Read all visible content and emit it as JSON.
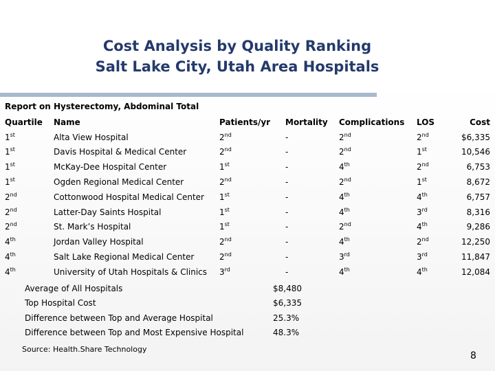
{
  "title_line1": "Cost Analysis by Quality Ranking",
  "title_line2": "Salt Lake City, Utah Area Hospitals",
  "report_label": "Report on Hysterectomy, Abdominal Total",
  "headers": {
    "quartile": "Quartile",
    "name": "Name",
    "patients": "Patients/yr",
    "mortality": "Mortality",
    "complications": "Complications",
    "los": "LOS",
    "cost": "Cost"
  },
  "rows": [
    {
      "quartile": [
        "1",
        "st"
      ],
      "name": "Alta View Hospital",
      "patients": [
        "2",
        "nd"
      ],
      "mortality": "-",
      "complications": [
        "2",
        "nd"
      ],
      "los": [
        "2",
        "nd"
      ],
      "cost": "$6,335"
    },
    {
      "quartile": [
        "1",
        "st"
      ],
      "name": "Davis Hospital & Medical Center",
      "patients": [
        "2",
        "nd"
      ],
      "mortality": "-",
      "complications": [
        "2",
        "nd"
      ],
      "los": [
        "1",
        "st"
      ],
      "cost": "10,546"
    },
    {
      "quartile": [
        "1",
        "st"
      ],
      "name": "McKay-Dee Hospital Center",
      "patients": [
        "1",
        "st"
      ],
      "mortality": "-",
      "complications": [
        "4",
        "th"
      ],
      "los": [
        "2",
        "nd"
      ],
      "cost": "6,753"
    },
    {
      "quartile": [
        "1",
        "st"
      ],
      "name": "Ogden Regional Medical Center",
      "patients": [
        "2",
        "nd"
      ],
      "mortality": "-",
      "complications": [
        "2",
        "nd"
      ],
      "los": [
        "1",
        "st"
      ],
      "cost": "8,672"
    },
    {
      "quartile": [
        "2",
        "nd"
      ],
      "name": "Cottonwood Hospital Medical Center",
      "patients": [
        "1",
        "st"
      ],
      "mortality": "-",
      "complications": [
        "4",
        "th"
      ],
      "los": [
        "4",
        "th"
      ],
      "cost": "6,757"
    },
    {
      "quartile": [
        "2",
        "nd"
      ],
      "name": "Latter-Day Saints Hospital",
      "patients": [
        "1",
        "st"
      ],
      "mortality": "-",
      "complications": [
        "4",
        "th"
      ],
      "los": [
        "3",
        "rd"
      ],
      "cost": "8,316"
    },
    {
      "quartile": [
        "2",
        "nd"
      ],
      "name": "St. Mark’s Hospital",
      "patients": [
        "1",
        "st"
      ],
      "mortality": "-",
      "complications": [
        "2",
        "nd"
      ],
      "los": [
        "4",
        "th"
      ],
      "cost": "9,286"
    },
    {
      "quartile": [
        "4",
        "th"
      ],
      "name": "Jordan Valley Hospital",
      "patients": [
        "2",
        "nd"
      ],
      "mortality": "-",
      "complications": [
        "4",
        "th"
      ],
      "los": [
        "2",
        "nd"
      ],
      "cost": "12,250"
    },
    {
      "quartile": [
        "4",
        "th"
      ],
      "name": "Salt Lake Regional Medical Center",
      "patients": [
        "2",
        "nd"
      ],
      "mortality": "-",
      "complications": [
        "3",
        "rd"
      ],
      "los": [
        "3",
        "rd"
      ],
      "cost": "11,847"
    },
    {
      "quartile": [
        "4",
        "th"
      ],
      "name": "University of Utah Hospitals & Clinics",
      "patients": [
        "3",
        "rd"
      ],
      "mortality": "-",
      "complications": [
        "4",
        "th"
      ],
      "los": [
        "4",
        "th"
      ],
      "cost": "12,084"
    }
  ],
  "summary": [
    {
      "label": "Average of All Hospitals",
      "value": "$8,480"
    },
    {
      "label": "Top Hospital Cost",
      "value": "$6,335"
    },
    {
      "label": "Difference between Top and Average Hospital",
      "value": "25.3%"
    },
    {
      "label": "Difference between Top and Most Expensive Hospital",
      "value": "48.3%"
    }
  ],
  "source": "Source:  Health.Share Technology",
  "page_number": "8"
}
